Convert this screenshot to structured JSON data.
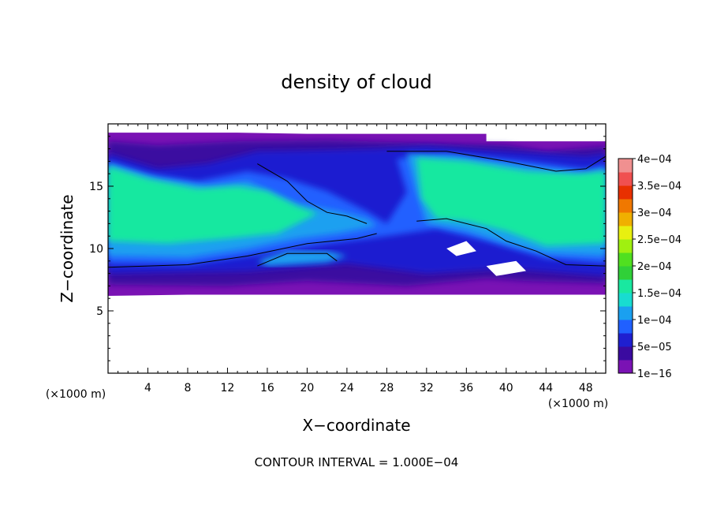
{
  "chart_data": {
    "type": "heatmap",
    "title": "density of cloud",
    "xlabel": "X−coordinate",
    "ylabel": "Z−coordinate",
    "x_unit_label": "(×1000 m)",
    "y_unit_label": "(×1000 m)",
    "xlim": [
      0,
      50
    ],
    "ylim": [
      0,
      20
    ],
    "x_ticks": [
      4,
      8,
      12,
      16,
      20,
      24,
      28,
      32,
      36,
      40,
      44,
      48
    ],
    "y_ticks": [
      5,
      10,
      15
    ],
    "contour_interval_label": "CONTOUR INTERVAL = 1.000E−04",
    "colorbar": {
      "labels": [
        "1e−16",
        "5e−05",
        "1e−04",
        "1.5e−04",
        "2e−04",
        "2.5e−04",
        "3e−04",
        "3.5e−04",
        "4e−04"
      ],
      "colors": [
        "#7a12b4",
        "#3a0aa0",
        "#1f1fd0",
        "#2060ff",
        "#1aa0f0",
        "#18dcd0",
        "#19e8a0",
        "#30d038",
        "#50e020",
        "#a0f010",
        "#e8f010",
        "#f0b000",
        "#f07800",
        "#e83000",
        "#f05050",
        "#f09090"
      ]
    },
    "regions": [
      {
        "name": "upper cloud core left",
        "x": [
          0,
          20
        ],
        "z": [
          9,
          17
        ],
        "level_color": "#19e8a0"
      },
      {
        "name": "upper cloud core right",
        "x": [
          28,
          50
        ],
        "z": [
          9,
          18
        ],
        "level_color": "#19e8a0"
      },
      {
        "name": "cloud base band",
        "x": [
          0,
          50
        ],
        "z": [
          6.3,
          9
        ],
        "level_color": "#1f1fd0"
      },
      {
        "name": "cloud top edge",
        "x": [
          0,
          50
        ],
        "z": [
          18,
          19.3
        ],
        "level_color": "#7a12b4"
      }
    ]
  }
}
